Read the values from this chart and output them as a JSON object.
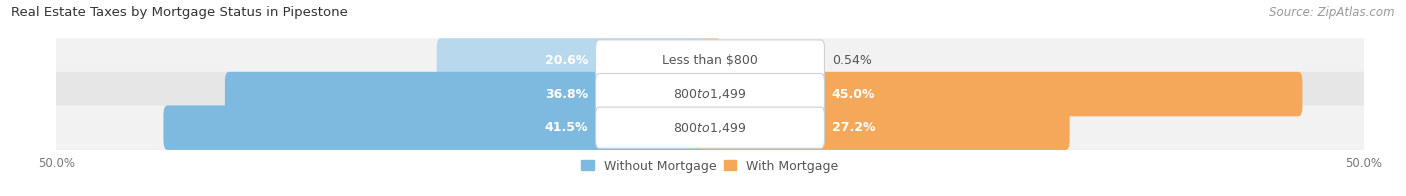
{
  "title": "Real Estate Taxes by Mortgage Status in Pipestone",
  "source": "Source: ZipAtlas.com",
  "rows": [
    {
      "label": "Less than $800",
      "without_mortgage": 20.6,
      "with_mortgage": 0.54
    },
    {
      "label": "$800 to $1,499",
      "without_mortgage": 36.8,
      "with_mortgage": 45.0
    },
    {
      "label": "$800 to $1,499",
      "without_mortgage": 41.5,
      "with_mortgage": 27.2
    }
  ],
  "axis_max": 50.0,
  "axis_min": -50.0,
  "color_without": "#7eb9e0",
  "color_with": "#f5a85a",
  "color_without_light": "#b8d8ee",
  "color_with_light": "#f9cfa0",
  "bar_height": 0.72,
  "label_fontsize": 9,
  "title_fontsize": 9.5,
  "source_fontsize": 8.5,
  "legend_fontsize": 9,
  "axis_tick_fontsize": 8.5,
  "row_bg_colors": [
    "#f2f2f2",
    "#e6e6e6",
    "#f2f2f2"
  ],
  "row_bg_alpha": [
    0.9,
    0.9,
    0.9
  ]
}
